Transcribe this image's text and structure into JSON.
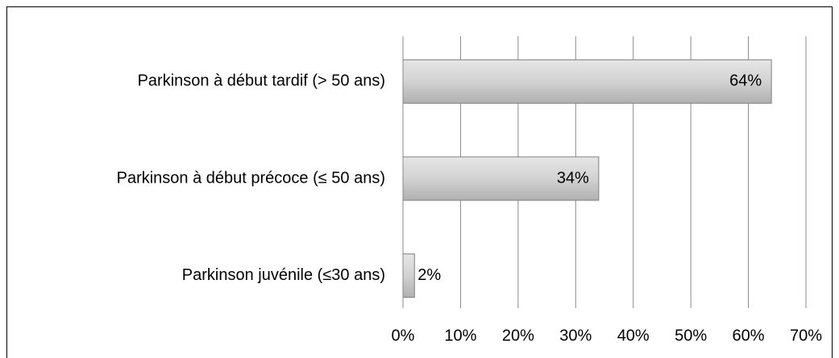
{
  "chart_data": {
    "type": "bar",
    "orientation": "horizontal",
    "categories": [
      "Parkinson à début tardif (> 50 ans)",
      "Parkinson à début précoce (≤ 50 ans)",
      "Parkinson juvénile (≤30 ans)"
    ],
    "values": [
      64,
      34,
      2
    ],
    "value_labels": [
      "64%",
      "34%",
      "2%"
    ],
    "color": "#d0d0d0",
    "xlim": [
      0,
      70
    ],
    "xticks": [
      {
        "value": 0,
        "label": "0%"
      },
      {
        "value": 10,
        "label": "10%"
      },
      {
        "value": 20,
        "label": "20%"
      },
      {
        "value": 30,
        "label": "30%"
      },
      {
        "value": 40,
        "label": "40%"
      },
      {
        "value": 50,
        "label": "50%"
      },
      {
        "value": 60,
        "label": "60%"
      },
      {
        "value": 70,
        "label": "70%"
      }
    ],
    "grid": true
  }
}
